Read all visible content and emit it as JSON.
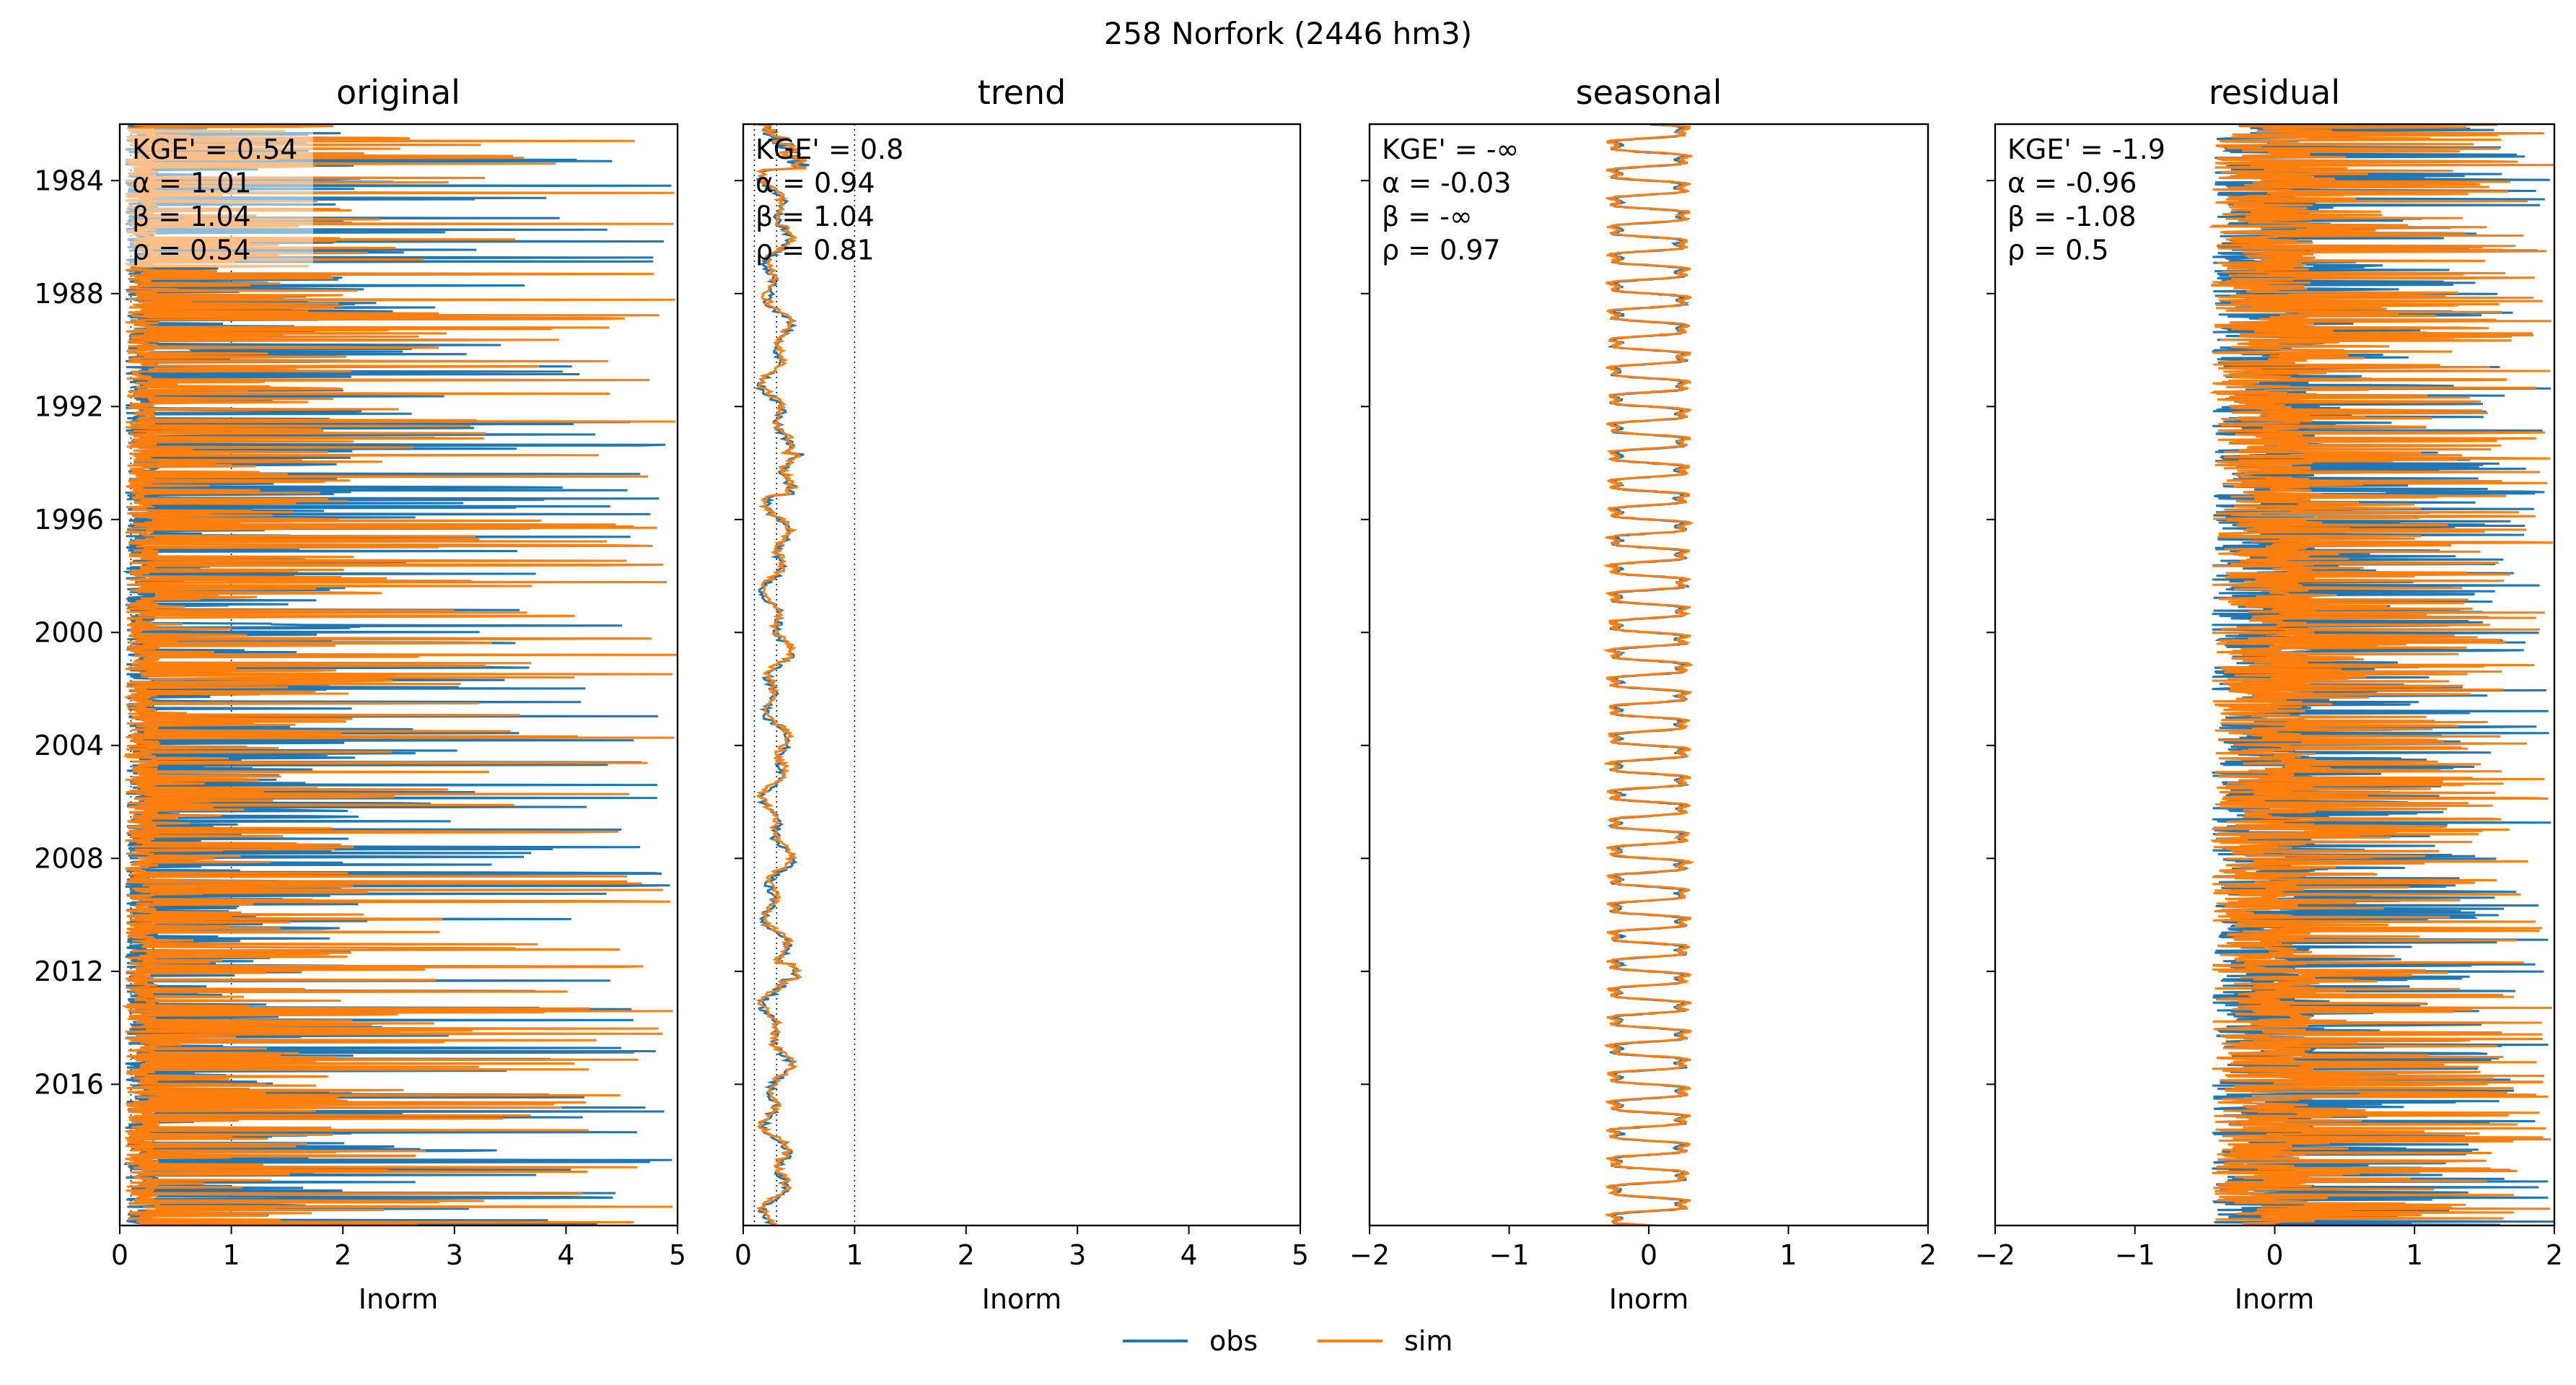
{
  "figure": {
    "suptitle": "258  Norfork (2446 hm3)",
    "legend": [
      "obs",
      "sim"
    ]
  },
  "colors": {
    "obs": "#1f77b4",
    "sim": "#ff7f0e",
    "annotation_box": "#ffffff"
  },
  "chart_data": [
    {
      "type": "line",
      "title": "original",
      "xlabel": "Inorm",
      "ylabel": "",
      "xlim": [
        0,
        5
      ],
      "xticks": [
        "0",
        "1",
        "2",
        "3",
        "4",
        "5"
      ],
      "ylim": [
        "1982-01-01",
        "2020-12-31"
      ],
      "yticks": [
        "1984",
        "1988",
        "1992",
        "1996",
        "2000",
        "2004",
        "2008",
        "2012",
        "2016"
      ],
      "reference_lines_x": [
        0.1,
        0.3,
        1.0
      ],
      "series": [
        {
          "name": "obs",
          "x_range_approx": [
            0,
            5
          ],
          "typical_baseline": 0.2
        },
        {
          "name": "sim",
          "x_range_approx": [
            0,
            5
          ],
          "typical_baseline": 0.2
        }
      ],
      "metrics": [
        "KGE' = 0.54",
        "α = 1.01",
        "β = 1.04",
        "ρ = 0.54"
      ]
    },
    {
      "type": "line",
      "title": "trend",
      "xlabel": "Inorm",
      "ylabel": "",
      "xlim": [
        0,
        5
      ],
      "xticks": [
        "0",
        "1",
        "2",
        "3",
        "4",
        "5"
      ],
      "ylim": [
        "1982-01-01",
        "2020-12-31"
      ],
      "reference_lines_x": [
        0.1,
        0.3,
        1.0
      ],
      "series": [
        {
          "name": "obs",
          "x_range_approx": [
            0.1,
            0.55
          ]
        },
        {
          "name": "sim",
          "x_range_approx": [
            0.1,
            0.55
          ]
        }
      ],
      "metrics": [
        "KGE' = 0.8",
        "α = 0.94",
        "β = 1.04",
        "ρ = 0.81"
      ]
    },
    {
      "type": "line",
      "title": "seasonal",
      "xlabel": "Inorm",
      "ylabel": "",
      "xlim": [
        -2,
        2
      ],
      "xticks": [
        "−2",
        "−1",
        "0",
        "1",
        "2"
      ],
      "ylim": [
        "1982-01-01",
        "2020-12-31"
      ],
      "series": [
        {
          "name": "obs",
          "amplitude": 0.28,
          "period_years": 1
        },
        {
          "name": "sim",
          "amplitude": 0.3,
          "period_years": 1
        }
      ],
      "metrics": [
        "KGE' = -∞",
        "α = -0.03",
        "β = -∞",
        "ρ = 0.97"
      ]
    },
    {
      "type": "line",
      "title": "residual",
      "xlabel": "Inorm",
      "ylabel": "",
      "xlim": [
        -2,
        2
      ],
      "xticks": [
        "−2",
        "−1",
        "0",
        "1",
        "2"
      ],
      "ylim": [
        "1982-01-01",
        "2020-12-31"
      ],
      "series": [
        {
          "name": "obs",
          "x_range_approx": [
            -0.7,
            2
          ]
        },
        {
          "name": "sim",
          "x_range_approx": [
            -0.7,
            2
          ]
        }
      ],
      "metrics": [
        "KGE' = -1.9",
        "α = -0.96",
        "β = -1.08",
        "ρ = 0.5"
      ]
    }
  ]
}
